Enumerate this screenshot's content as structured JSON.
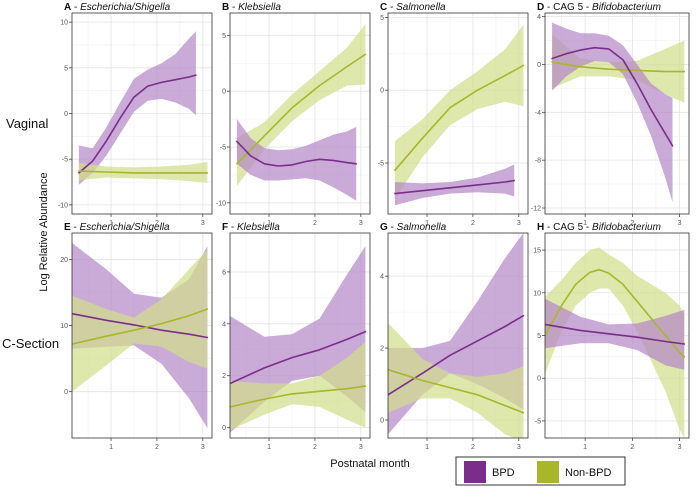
{
  "chart_data": {
    "type": "line",
    "xlabel": "Postnatal month",
    "ylabel": "Log Relative Abundance",
    "row_labels": [
      "Vaginal",
      "C-Section"
    ],
    "legend": [
      {
        "name": "BPD",
        "color": "#7b2d8b",
        "fill": "#b589c8"
      },
      {
        "name": "Non-BPD",
        "color": "#a8b72a",
        "fill": "#d1de8c"
      }
    ],
    "x": [
      0.3,
      0.6,
      0.9,
      1.2,
      1.5,
      1.8,
      2.1,
      2.4,
      2.7,
      2.85,
      3.0,
      3.1
    ],
    "panels": [
      {
        "letter": "A",
        "sep": " - ",
        "organism": "Escherichia/Shigella",
        "xlim": [
          0.15,
          3.2
        ],
        "ylim": [
          -11,
          11
        ],
        "xticks": [
          1,
          2,
          3
        ],
        "yticks": [
          -10,
          -5,
          0,
          5,
          10
        ],
        "series": [
          {
            "name": "BPD",
            "x": [
              0.3,
              0.6,
              0.9,
              1.2,
              1.5,
              1.8,
              2.1,
              2.4,
              2.7,
              2.85
            ],
            "y": [
              -6.5,
              -5.2,
              -3.0,
              -0.5,
              1.8,
              3.0,
              3.4,
              3.7,
              4.0,
              4.2
            ],
            "lo": [
              -7.8,
              -6.5,
              -4.6,
              -2.2,
              0.2,
              1.4,
              1.6,
              1.2,
              0.5,
              -0.2
            ],
            "hi": [
              -3.5,
              -3.8,
              -1.5,
              1.2,
              3.8,
              4.8,
              5.5,
              6.5,
              8.2,
              9.0
            ]
          },
          {
            "name": "Non-BPD",
            "x": [
              0.3,
              0.9,
              1.5,
              2.1,
              2.7,
              3.1
            ],
            "y": [
              -6.3,
              -6.4,
              -6.5,
              -6.5,
              -6.5,
              -6.5
            ],
            "lo": [
              -7.3,
              -7.0,
              -7.1,
              -7.2,
              -7.4,
              -7.6
            ],
            "hi": [
              -5.4,
              -5.8,
              -5.9,
              -5.8,
              -5.6,
              -5.3
            ]
          }
        ]
      },
      {
        "letter": "B",
        "sep": " - ",
        "organism": "Klebsiella",
        "xlim": [
          0.15,
          3.2
        ],
        "ylim": [
          -11,
          7
        ],
        "xticks": [
          1,
          2,
          3
        ],
        "yticks": [
          -10,
          -5,
          0,
          5
        ],
        "series": [
          {
            "name": "Non-BPD",
            "x": [
              0.3,
              0.9,
              1.5,
              2.1,
              2.7,
              3.1
            ],
            "y": [
              -6.5,
              -4.0,
              -1.5,
              0.5,
              2.2,
              3.3
            ],
            "lo": [
              -8.5,
              -5.2,
              -2.7,
              -0.8,
              0.5,
              0.6
            ],
            "hi": [
              -4.2,
              -2.8,
              -0.3,
              1.8,
              3.9,
              6.0
            ]
          },
          {
            "name": "BPD",
            "x": [
              0.3,
              0.6,
              0.9,
              1.2,
              1.5,
              1.8,
              2.1,
              2.4,
              2.7,
              2.9
            ],
            "y": [
              -4.5,
              -5.8,
              -6.5,
              -6.7,
              -6.6,
              -6.3,
              -6.1,
              -6.2,
              -6.4,
              -6.5
            ],
            "lo": [
              -6.5,
              -7.5,
              -8.0,
              -8.0,
              -7.9,
              -7.8,
              -8.0,
              -8.6,
              -9.3,
              -9.8
            ],
            "hi": [
              -2.5,
              -4.2,
              -5.1,
              -5.3,
              -5.2,
              -4.9,
              -4.4,
              -3.9,
              -3.6,
              -3.2
            ]
          }
        ]
      },
      {
        "letter": "C",
        "sep": " - ",
        "organism": "Salmonella",
        "xlim": [
          0.15,
          3.2
        ],
        "ylim": [
          -8.5,
          5.3
        ],
        "xticks": [
          1,
          2,
          3
        ],
        "yticks": [
          -5,
          0,
          5
        ],
        "series": [
          {
            "name": "Non-BPD",
            "x": [
              0.3,
              0.9,
              1.5,
              2.1,
              2.7,
              3.1
            ],
            "y": [
              -5.5,
              -3.3,
              -1.2,
              0.0,
              1.0,
              1.7
            ],
            "lo": [
              -7.5,
              -4.6,
              -2.4,
              -1.3,
              -0.8,
              -1.1
            ],
            "hi": [
              -3.5,
              -2.0,
              0.0,
              1.3,
              2.8,
              4.5
            ]
          },
          {
            "name": "BPD",
            "x": [
              0.3,
              0.9,
              1.5,
              2.1,
              2.7,
              2.9
            ],
            "y": [
              -7.1,
              -6.9,
              -6.7,
              -6.5,
              -6.3,
              -6.2
            ],
            "lo": [
              -7.9,
              -7.4,
              -7.1,
              -7.0,
              -7.1,
              -7.3
            ],
            "hi": [
              -6.3,
              -6.4,
              -6.3,
              -6.0,
              -5.4,
              -5.1
            ]
          }
        ]
      },
      {
        "letter": "D",
        "sep": " - CAG 5 - ",
        "organism": "Bifidobacterium",
        "xlim": [
          0.15,
          3.2
        ],
        "ylim": [
          -12.5,
          4.3
        ],
        "xticks": [
          1,
          2,
          3
        ],
        "yticks": [
          -12,
          -8,
          -4,
          0,
          4
        ],
        "series": [
          {
            "name": "Non-BPD",
            "x": [
              0.3,
              0.9,
              1.5,
              2.1,
              2.7,
              3.1
            ],
            "y": [
              0.2,
              -0.2,
              -0.4,
              -0.5,
              -0.6,
              -0.6
            ],
            "lo": [
              -2.0,
              -1.0,
              -1.0,
              -1.3,
              -2.5,
              -3.2
            ],
            "hi": [
              2.5,
              0.5,
              0.2,
              0.3,
              1.3,
              2.0
            ]
          },
          {
            "name": "BPD",
            "x": [
              0.3,
              0.6,
              0.9,
              1.2,
              1.5,
              1.8,
              2.1,
              2.4,
              2.7,
              2.85
            ],
            "y": [
              0.5,
              0.9,
              1.2,
              1.4,
              1.3,
              0.4,
              -1.6,
              -3.8,
              -5.8,
              -6.8
            ],
            "lo": [
              -2.2,
              -1.0,
              -0.2,
              0.3,
              0.2,
              -0.8,
              -3.2,
              -6.0,
              -9.5,
              -11.5
            ],
            "hi": [
              3.5,
              3.0,
              2.6,
              2.6,
              2.4,
              1.6,
              0.0,
              -1.6,
              -2.5,
              -2.8
            ]
          }
        ]
      },
      {
        "letter": "E",
        "sep": " - ",
        "organism": "Escherichia/Shigella",
        "xlim": [
          0.15,
          3.2
        ],
        "ylim": [
          -7,
          24
        ],
        "xticks": [
          1,
          2,
          3
        ],
        "yticks": [
          0,
          10,
          20
        ],
        "series": [
          {
            "name": "BPD",
            "x": [
              0.15,
              0.9,
              1.5,
              2.1,
              2.7,
              3.1
            ],
            "y": [
              11.8,
              10.8,
              10.1,
              9.3,
              8.7,
              8.2
            ],
            "lo": [
              6.5,
              6.8,
              7.0,
              4.2,
              -1.0,
              -5.5
            ],
            "hi": [
              22.5,
              18.5,
              14.8,
              14.2,
              17.0,
              22.0
            ]
          },
          {
            "name": "Non-BPD",
            "x": [
              0.15,
              0.9,
              1.5,
              2.1,
              2.7,
              3.1
            ],
            "y": [
              7.2,
              8.4,
              9.3,
              10.3,
              11.5,
              12.5
            ],
            "lo": [
              0.0,
              4.0,
              7.3,
              6.8,
              4.5,
              3.5
            ],
            "hi": [
              14.5,
              12.5,
              11.2,
              14.0,
              18.5,
              21.5
            ]
          }
        ]
      },
      {
        "letter": "F",
        "sep": " - ",
        "organism": "Klebsiella",
        "xlim": [
          0.15,
          3.2
        ],
        "ylim": [
          -0.4,
          7.5
        ],
        "xticks": [
          1,
          2,
          3
        ],
        "yticks": [
          0,
          2,
          4,
          6
        ],
        "series": [
          {
            "name": "BPD",
            "x": [
              0.15,
              0.9,
              1.5,
              2.1,
              2.7,
              3.1
            ],
            "y": [
              1.7,
              2.3,
              2.7,
              3.0,
              3.4,
              3.7
            ],
            "lo": [
              -0.2,
              1.0,
              1.8,
              2.0,
              1.2,
              0.6
            ],
            "hi": [
              4.3,
              3.5,
              3.6,
              4.2,
              5.9,
              7.0
            ]
          },
          {
            "name": "Non-BPD",
            "x": [
              0.15,
              0.9,
              1.5,
              2.1,
              2.7,
              3.1
            ],
            "y": [
              0.8,
              1.1,
              1.3,
              1.4,
              1.5,
              1.6
            ],
            "lo": [
              -0.1,
              0.5,
              0.9,
              0.8,
              0.3,
              0.0
            ],
            "hi": [
              1.8,
              1.7,
              1.7,
              2.0,
              2.7,
              3.3
            ]
          }
        ]
      },
      {
        "letter": "G",
        "sep": " - ",
        "organism": "Salmonella",
        "xlim": [
          0.15,
          3.2
        ],
        "ylim": [
          -0.5,
          5.2
        ],
        "xticks": [
          1,
          2,
          3
        ],
        "yticks": [
          0,
          2,
          4
        ],
        "series": [
          {
            "name": "BPD",
            "x": [
              0.15,
              0.9,
              1.5,
              2.1,
              2.7,
              3.1
            ],
            "y": [
              0.7,
              1.3,
              1.8,
              2.2,
              2.6,
              2.9
            ],
            "lo": [
              -0.4,
              0.7,
              1.3,
              1.0,
              0.6,
              0.3
            ],
            "hi": [
              2.0,
              2.0,
              2.2,
              3.3,
              4.5,
              5.2
            ]
          },
          {
            "name": "Non-BPD",
            "x": [
              0.15,
              0.9,
              1.5,
              2.1,
              2.7,
              3.1
            ],
            "y": [
              1.4,
              1.1,
              0.9,
              0.7,
              0.4,
              0.2
            ],
            "lo": [
              0.2,
              0.6,
              0.6,
              0.2,
              -0.4,
              -0.6
            ],
            "hi": [
              2.7,
              1.7,
              1.3,
              1.2,
              1.3,
              1.5
            ]
          }
        ]
      },
      {
        "letter": "H",
        "sep": " - CAG 5 - ",
        "organism": "Bifidobacterium",
        "xlim": [
          0.15,
          3.2
        ],
        "ylim": [
          -7,
          17
        ],
        "xticks": [
          1,
          2,
          3
        ],
        "yticks": [
          -5,
          0,
          5,
          10,
          15
        ],
        "series": [
          {
            "name": "Non-BPD",
            "x": [
              0.15,
              0.5,
              0.8,
              1.1,
              1.3,
              1.5,
              1.8,
              2.1,
              2.4,
              2.7,
              3.0,
              3.1
            ],
            "y": [
              5.0,
              8.5,
              11.0,
              12.4,
              12.7,
              12.3,
              11.0,
              9.0,
              7.0,
              5.0,
              3.0,
              2.5
            ],
            "lo": [
              0.5,
              5.5,
              8.5,
              10.0,
              10.5,
              10.5,
              8.5,
              5.5,
              2.0,
              -1.5,
              -6.0,
              -7.0
            ],
            "hi": [
              9.5,
              11.5,
              13.5,
              15.0,
              15.3,
              14.5,
              13.5,
              12.0,
              11.0,
              10.0,
              8.5,
              7.5
            ]
          },
          {
            "name": "BPD",
            "x": [
              0.15,
              0.9,
              1.5,
              2.1,
              2.7,
              3.1
            ],
            "y": [
              6.3,
              5.6,
              5.2,
              4.8,
              4.3,
              4.0
            ],
            "lo": [
              3.5,
              4.1,
              4.1,
              3.3,
              1.5,
              1.0
            ],
            "hi": [
              9.3,
              7.2,
              6.3,
              6.4,
              7.3,
              8.0
            ]
          }
        ]
      }
    ]
  }
}
